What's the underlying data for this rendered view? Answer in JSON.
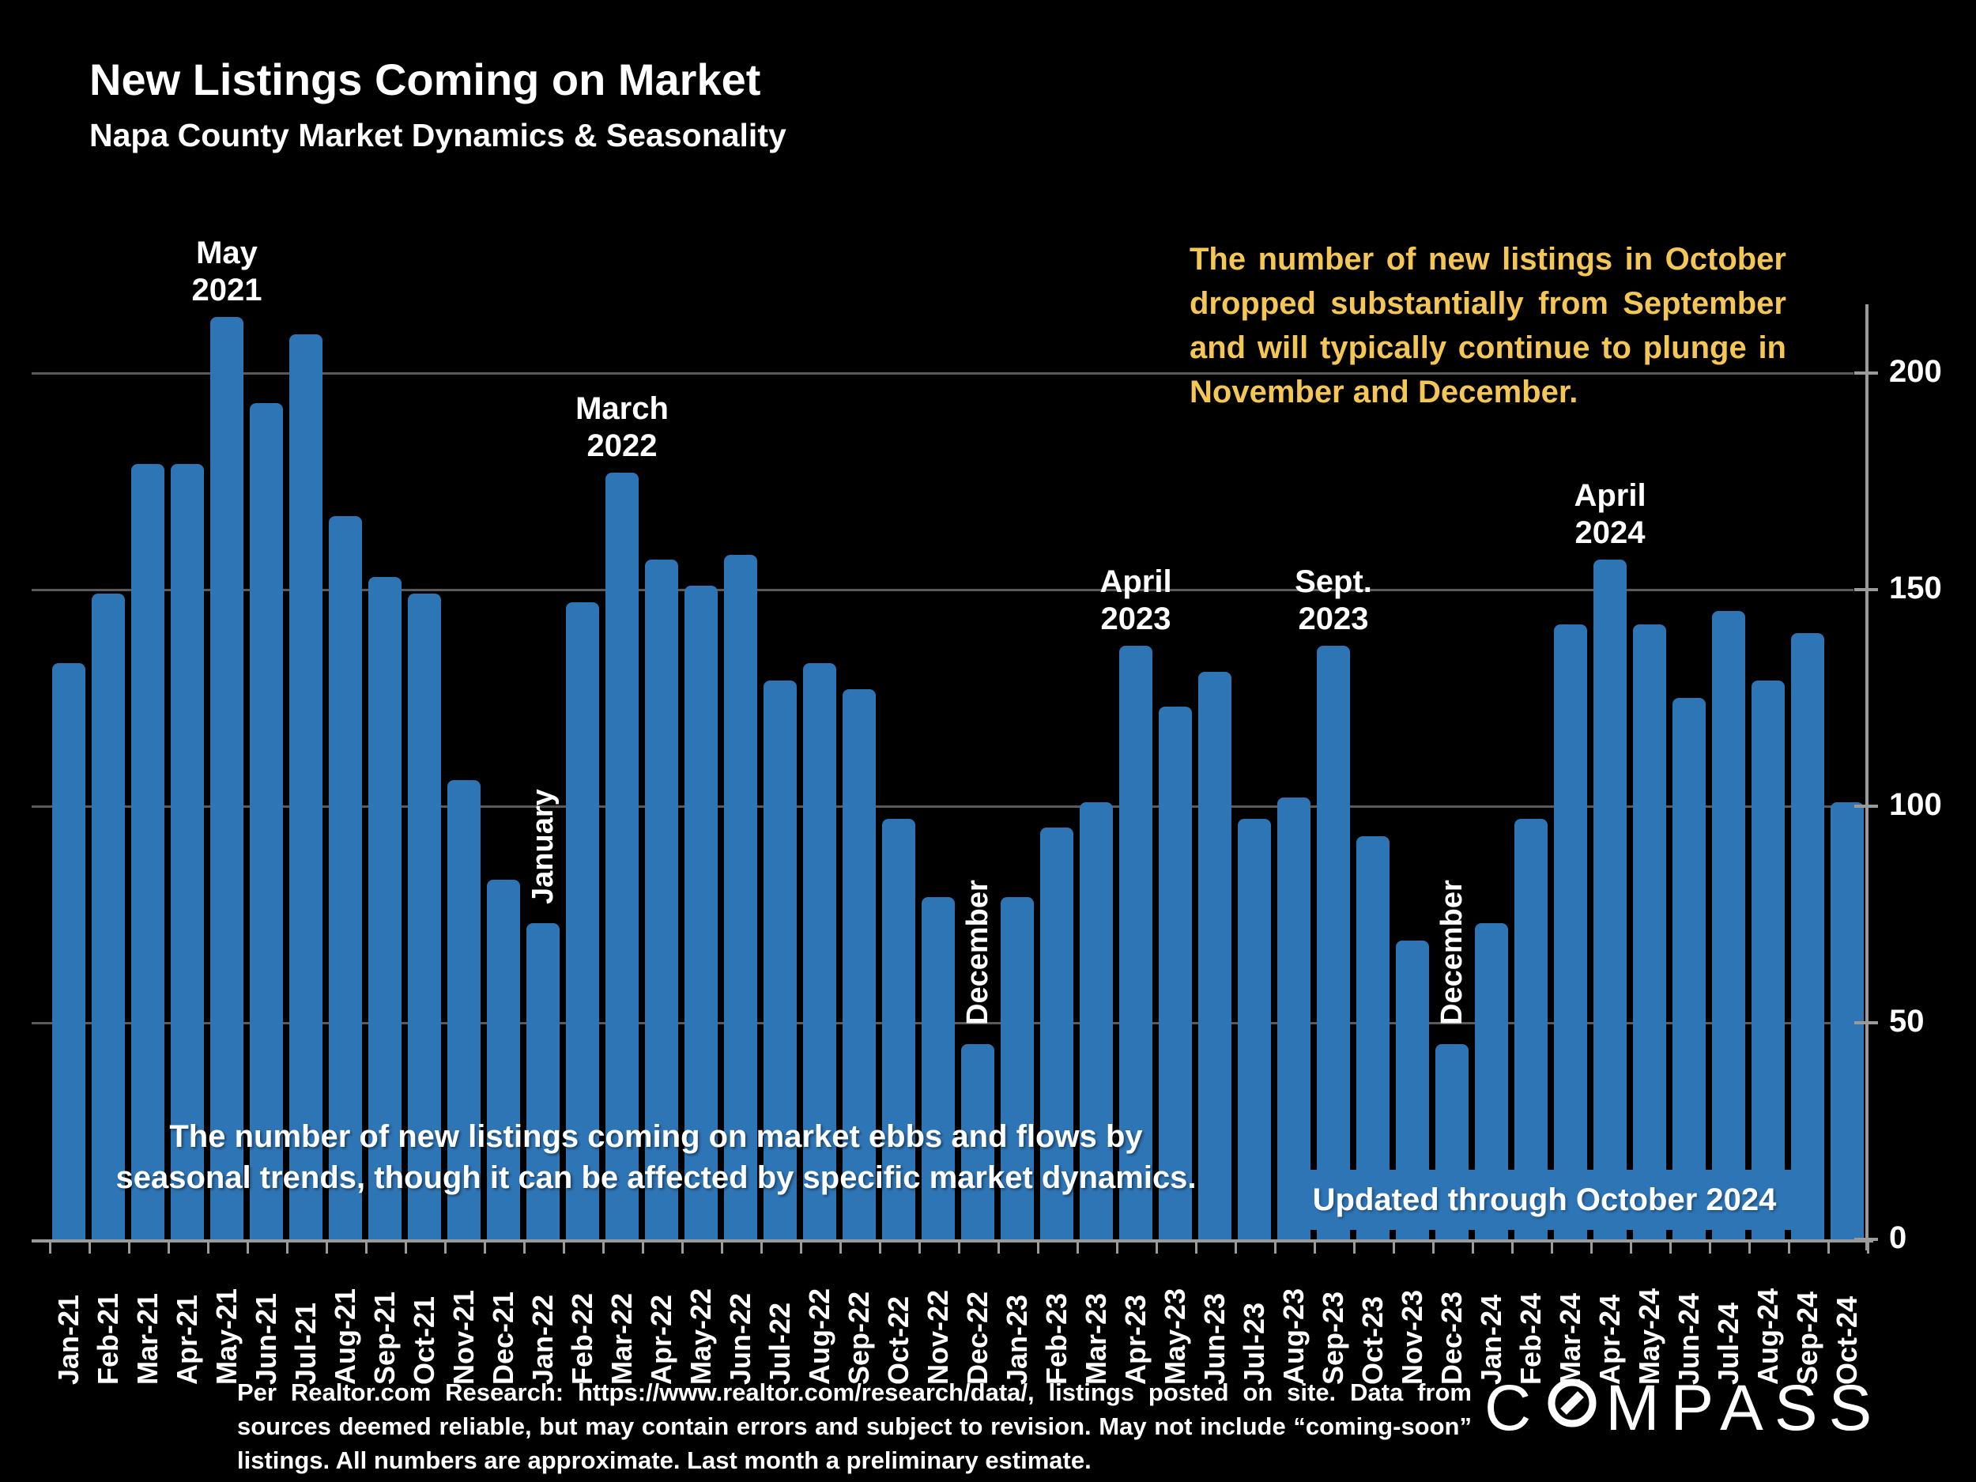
{
  "header": {
    "title": "New Listings Coming on Market",
    "subtitle": "Napa County Market Dynamics & Seasonality"
  },
  "callout": {
    "text": "The number of new listings in October dropped substantially from September and will typically continue to plunge in November and December.",
    "color": "#F3C655"
  },
  "mid_note": {
    "line1": "The number of new listings coming on market ebbs and flows by",
    "line2": "seasonal trends, though it can be affected by specific market dynamics."
  },
  "updated_note": "Updated through October 2024",
  "footer": {
    "text": "Per Realtor.com Research:  https://www.realtor.com/research/data/, listings posted on site. Data from sources deemed reliable, but may contain errors and subject to revision. May not include “coming-soon” listings. All numbers are approximate. Last month a preliminary estimate."
  },
  "logo": {
    "prefix": "C",
    "suffix": "MPASS",
    "name": "COMPASS"
  },
  "chart_data": {
    "type": "bar",
    "title": "New Listings Coming on Market",
    "xlabel": "",
    "ylabel": "",
    "ylim": [
      0,
      220
    ],
    "yticks": [
      0,
      50,
      100,
      150,
      200
    ],
    "grid": true,
    "legend": "none",
    "bar_color": "#2E75B6",
    "gridline_color": "#5a5a5a",
    "axis_color": "#9a9a9a",
    "categories": [
      "Jan-21",
      "Feb-21",
      "Mar-21",
      "Apr-21",
      "May-21",
      "Jun-21",
      "Jul-21",
      "Aug-21",
      "Sep-21",
      "Oct-21",
      "Nov-21",
      "Dec-21",
      "Jan-22",
      "Feb-22",
      "Mar-22",
      "Apr-22",
      "May-22",
      "Jun-22",
      "Jul-22",
      "Aug-22",
      "Sep-22",
      "Oct-22",
      "Nov-22",
      "Dec-22",
      "Jan-23",
      "Feb-23",
      "Mar-23",
      "Apr-23",
      "May-23",
      "Jun-23",
      "Jul-23",
      "Aug-23",
      "Sep-23",
      "Oct-23",
      "Nov-23",
      "Dec-23",
      "Jan-24",
      "Feb-24",
      "Mar-24",
      "Apr-24",
      "May-24",
      "Jun-24",
      "Jul-24",
      "Aug-24",
      "Sep-24",
      "Oct-24"
    ],
    "values": [
      133,
      149,
      179,
      179,
      213,
      193,
      209,
      167,
      153,
      149,
      106,
      83,
      73,
      147,
      177,
      157,
      151,
      158,
      129,
      133,
      127,
      97,
      79,
      45,
      79,
      95,
      101,
      137,
      123,
      131,
      97,
      102,
      137,
      93,
      69,
      45,
      73,
      97,
      142,
      157,
      142,
      125,
      145,
      129,
      140,
      101
    ],
    "annotations": [
      {
        "month": "May-21",
        "line1": "May",
        "line2": "2021"
      },
      {
        "month": "Mar-22",
        "line1": "March",
        "line2": "2022"
      },
      {
        "month": "Apr-23",
        "line1": "April",
        "line2": "2023"
      },
      {
        "month": "Sep-23",
        "line1": "Sept.",
        "line2": "2023"
      },
      {
        "month": "Apr-24",
        "line1": "April",
        "line2": "2024"
      }
    ],
    "vertical_labels": [
      {
        "month": "Jan-22",
        "text": "January"
      },
      {
        "month": "Dec-22",
        "text": "December"
      },
      {
        "month": "Dec-23",
        "text": "December"
      }
    ]
  }
}
